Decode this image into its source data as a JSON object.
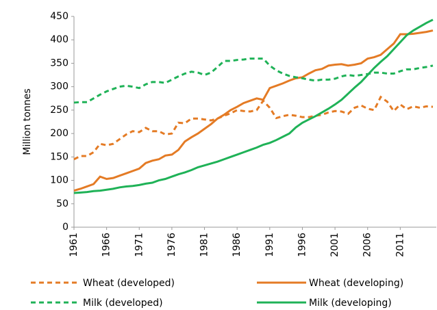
{
  "chart_data": {
    "type": "line",
    "y_label": "Million tonnes",
    "x": [
      1961,
      1962,
      1963,
      1964,
      1965,
      1966,
      1967,
      1968,
      1969,
      1970,
      1971,
      1972,
      1973,
      1974,
      1975,
      1976,
      1977,
      1978,
      1979,
      1980,
      1981,
      1982,
      1983,
      1984,
      1985,
      1986,
      1987,
      1988,
      1989,
      1990,
      1991,
      1992,
      1993,
      1994,
      1995,
      1996,
      1997,
      1998,
      1999,
      2000,
      2001,
      2002,
      2003,
      2004,
      2005,
      2006,
      2007,
      2008,
      2009,
      2010,
      2011,
      2012,
      2013,
      2014,
      2015,
      2016
    ],
    "xlim": [
      1961,
      2016
    ],
    "xticks": [
      1961,
      1966,
      1971,
      1976,
      1981,
      1986,
      1991,
      1996,
      2001,
      2006,
      2011
    ],
    "ylim": [
      0,
      450
    ],
    "yticks": [
      0,
      50,
      100,
      150,
      200,
      250,
      300,
      350,
      400,
      450
    ],
    "grid": false,
    "legend": "bottom",
    "series": [
      {
        "name": "Wheat (developed)",
        "color": "#e47b25",
        "linestyle": "dashed",
        "values": [
          145,
          152,
          152,
          160,
          178,
          175,
          178,
          188,
          198,
          205,
          203,
          212,
          205,
          205,
          198,
          200,
          223,
          222,
          232,
          232,
          230,
          228,
          232,
          238,
          243,
          250,
          248,
          247,
          250,
          270,
          255,
          233,
          237,
          240,
          238,
          235,
          235,
          238,
          240,
          245,
          248,
          247,
          242,
          255,
          260,
          253,
          250,
          278,
          268,
          248,
          262,
          252,
          258,
          255,
          258,
          257
        ]
      },
      {
        "name": "Wheat (developing)",
        "color": "#e47b25",
        "linestyle": "solid",
        "values": [
          78,
          82,
          87,
          92,
          108,
          103,
          105,
          110,
          115,
          120,
          125,
          137,
          142,
          145,
          153,
          155,
          165,
          183,
          192,
          200,
          210,
          220,
          232,
          240,
          250,
          257,
          265,
          270,
          275,
          272,
          297,
          302,
          307,
          313,
          318,
          320,
          328,
          335,
          338,
          345,
          347,
          348,
          345,
          347,
          350,
          360,
          363,
          368,
          380,
          392,
          412,
          412,
          413,
          415,
          417,
          420
        ]
      },
      {
        "name": "Milk (developed)",
        "color": "#1fb257",
        "linestyle": "dashed",
        "values": [
          266,
          267,
          267,
          275,
          283,
          290,
          295,
          300,
          302,
          300,
          297,
          305,
          310,
          310,
          308,
          315,
          322,
          328,
          332,
          330,
          325,
          330,
          342,
          355,
          355,
          357,
          358,
          360,
          360,
          360,
          345,
          335,
          328,
          323,
          320,
          318,
          315,
          313,
          315,
          315,
          317,
          322,
          325,
          323,
          325,
          327,
          330,
          330,
          328,
          328,
          333,
          337,
          337,
          340,
          342,
          345
        ]
      },
      {
        "name": "Milk (developing)",
        "color": "#1fb257",
        "linestyle": "solid",
        "values": [
          73,
          74,
          75,
          77,
          78,
          80,
          82,
          85,
          87,
          88,
          90,
          93,
          95,
          100,
          103,
          108,
          113,
          117,
          122,
          128,
          132,
          136,
          140,
          145,
          150,
          155,
          160,
          165,
          170,
          176,
          180,
          186,
          193,
          200,
          213,
          223,
          230,
          237,
          245,
          253,
          262,
          272,
          285,
          298,
          310,
          325,
          340,
          353,
          365,
          380,
          395,
          410,
          420,
          428,
          436,
          443
        ]
      }
    ]
  }
}
